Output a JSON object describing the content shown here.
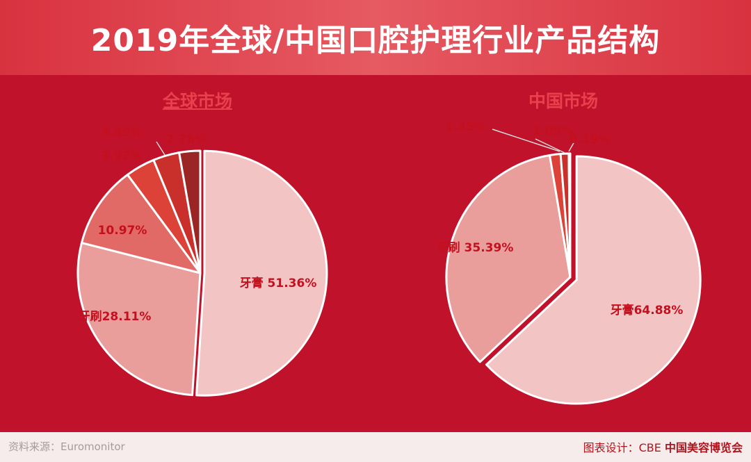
{
  "title": "2019年全球/中国口腔护理行业产品结构",
  "footer": {
    "source": "资料来源：Euromonitor",
    "credit_prefix": "图表设计：CBE",
    "credit_brand": "中国美容博览会"
  },
  "colors": {
    "background": "#c0122a",
    "label": "#c4101e",
    "slice_edge": "#ffffff"
  },
  "chart_data": [
    {
      "type": "pie",
      "title": "全球市场",
      "slices": [
        {
          "name": "牙膏",
          "value": 51.36,
          "display": "牙膏 51.36%",
          "color": "#f2c4c4"
        },
        {
          "name": "牙刷",
          "value": 28.11,
          "display": "牙刷28.11%",
          "color": "#ea9e9c"
        },
        {
          "name": "漱口水/牙齿清洗",
          "value": 10.97,
          "display": "10.97%",
          "color": "#e26a66"
        },
        {
          "name": "假牙护理",
          "value": 3.92,
          "display": "3.92%",
          "color": "#dc4238"
        },
        {
          "name": "牙线",
          "value": 3.49,
          "display": "3.49%",
          "color": "#c9302c"
        },
        {
          "name": "其他",
          "value": 2.78,
          "display": "2.78%",
          "color": "#9b2524"
        }
      ]
    },
    {
      "type": "pie",
      "title": "中国市场",
      "slices": [
        {
          "name": "牙膏",
          "value": 64.88,
          "display": "牙膏64.88%",
          "color": "#f2c4c4"
        },
        {
          "name": "牙刷",
          "value": 35.39,
          "display": "牙刷 35.39%",
          "color": "#ea9e9c"
        },
        {
          "name": "漱口水/牙齿清洗",
          "value": 1.45,
          "display": "1.45%",
          "color": "#dc4238"
        },
        {
          "name": "牙线",
          "value": 1.09,
          "display": "1.09%",
          "color": "#c9302c"
        },
        {
          "name": "其他",
          "value": 0.19,
          "display": "0.19%",
          "color": "#9b2524"
        }
      ]
    }
  ]
}
